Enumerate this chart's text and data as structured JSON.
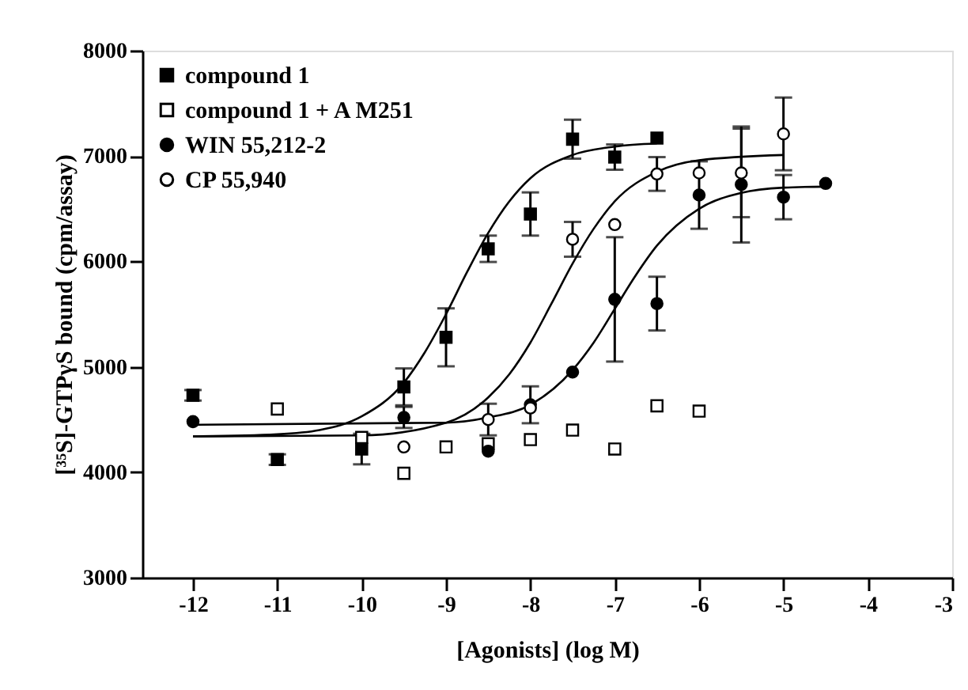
{
  "chart_data": {
    "type": "scatter",
    "xlabel": "[Agonists] (log M)",
    "ylabel": "[³⁵S]-GTPγS bound (cpm/assay)",
    "xlim": [
      -12.6,
      -3
    ],
    "ylim": [
      3000,
      8000
    ],
    "xticks": [
      -12,
      -11,
      -10,
      -9,
      -8,
      -7,
      -6,
      -5,
      -4,
      -3
    ],
    "yticks": [
      3000,
      4000,
      5000,
      6000,
      7000,
      8000
    ],
    "grid": false,
    "legend": "top left",
    "series": [
      {
        "name": "compound 1",
        "marker": "square",
        "color": "#000000",
        "x": [
          -12,
          -11,
          -10,
          -9.5,
          -9,
          -8.5,
          -8,
          -7.5,
          -7,
          -6.5
        ],
        "values": [
          4730,
          4120,
          4220,
          4810,
          5280,
          6120,
          6450,
          7160,
          6990,
          7170
        ],
        "errors": [
          50,
          50,
          145,
          175,
          275,
          125,
          205,
          185,
          120,
          null
        ]
      },
      {
        "name": "compound 1 + A M251",
        "marker": "square",
        "color": "#ffffff",
        "x": [
          -11,
          -10,
          -9.5,
          -9,
          -8.5,
          -8,
          -7.5,
          -7,
          -6.5,
          -6
        ],
        "values": [
          4600,
          4330,
          3990,
          4240,
          4270,
          4310,
          4400,
          4220,
          4630,
          4580
        ]
      },
      {
        "name": "WIN 55,212-2",
        "marker": "circle",
        "color": "#000000",
        "x": [
          -12,
          -9.5,
          -8.5,
          -8,
          -7.5,
          -7,
          -6.5,
          -6,
          -5.5,
          -5,
          -4.5
        ],
        "values": [
          4480,
          4520,
          4200,
          4640,
          4950,
          5640,
          5600,
          6630,
          6730,
          6610,
          6740
        ],
        "errors": [
          null,
          100,
          null,
          175,
          null,
          590,
          255,
          320,
          550,
          210,
          null
        ]
      },
      {
        "name": "CP 55,940",
        "marker": "circle",
        "color": "#ffffff",
        "x": [
          -9.5,
          -8.5,
          -8,
          -7.5,
          -7,
          -6.5,
          -6,
          -5.5,
          -5
        ],
        "values": [
          4240,
          4500,
          4610,
          6210,
          6350,
          6830,
          6840,
          6840,
          7210
        ],
        "errors": [
          null,
          150,
          null,
          165,
          null,
          160,
          null,
          420,
          345
        ]
      },
      {
        "type": "line",
        "color": "#000000",
        "x": [
          -12,
          -11,
          -10.5,
          -10,
          -9.5,
          -9.25,
          -9,
          -8.75,
          -8.5,
          -8.25,
          -8,
          -7.5,
          -7,
          -6.5
        ],
        "values": [
          4340,
          4360,
          4400,
          4530,
          4850,
          5140,
          5500,
          5900,
          6270,
          6570,
          6790,
          7010,
          7090,
          7120
        ]
      },
      {
        "type": "line",
        "color": "#000000",
        "x": [
          -12,
          -10,
          -9,
          -8.5,
          -8.25,
          -8,
          -7.75,
          -7.5,
          -7.25,
          -7,
          -6.5,
          -6,
          -5
        ],
        "values": [
          4340,
          4350,
          4470,
          4710,
          4930,
          5230,
          5600,
          5980,
          6310,
          6570,
          6850,
          6960,
          7010
        ]
      },
      {
        "type": "line",
        "color": "#000000",
        "x": [
          -12,
          -9,
          -8.5,
          -8,
          -7.5,
          -7.25,
          -7,
          -6.75,
          -6.5,
          -6,
          -5.5,
          -5,
          -4.5
        ],
        "values": [
          4450,
          4470,
          4520,
          4640,
          4970,
          5230,
          5550,
          5870,
          6150,
          6500,
          6650,
          6700,
          6710
        ]
      }
    ]
  }
}
